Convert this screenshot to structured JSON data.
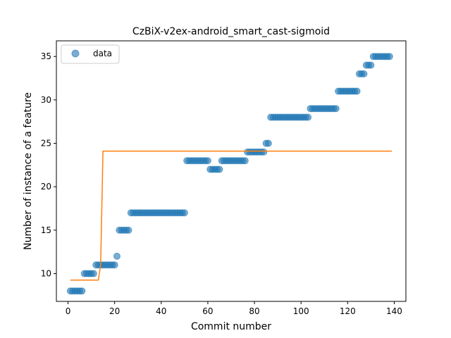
{
  "chart_data": {
    "type": "scatter",
    "title": "CzBiX-v2ex-android_smart_cast-sigmoid",
    "xlabel": "Commit number",
    "ylabel": "Number of instance of a feature",
    "xlim": [
      -5,
      145
    ],
    "ylim": [
      6.8,
      36.8
    ],
    "xticks": [
      0,
      20,
      40,
      60,
      80,
      100,
      120,
      140
    ],
    "yticks": [
      10,
      15,
      20,
      25,
      30,
      35
    ],
    "grid": false,
    "legend": {
      "placement": "top-left",
      "entries": [
        "data"
      ]
    },
    "colors": {
      "data": "#1f77b4",
      "fit": "#ff7f0e"
    },
    "series": [
      {
        "name": "data",
        "kind": "scatter",
        "x": [
          1,
          2,
          3,
          4,
          5,
          6,
          7,
          8,
          9,
          10,
          11,
          12,
          13,
          14,
          15,
          16,
          17,
          18,
          19,
          20,
          21,
          22,
          23,
          24,
          25,
          26,
          27,
          28,
          29,
          30,
          31,
          32,
          33,
          34,
          35,
          36,
          37,
          38,
          39,
          40,
          41,
          42,
          43,
          44,
          45,
          46,
          47,
          48,
          49,
          50,
          51,
          52,
          53,
          54,
          55,
          56,
          57,
          58,
          59,
          60,
          61,
          62,
          63,
          64,
          65,
          66,
          67,
          68,
          69,
          70,
          71,
          72,
          73,
          74,
          75,
          76,
          77,
          78,
          79,
          80,
          81,
          82,
          83,
          84,
          85,
          86,
          87,
          88,
          89,
          90,
          91,
          92,
          93,
          94,
          95,
          96,
          97,
          98,
          99,
          100,
          101,
          102,
          103,
          104,
          105,
          106,
          107,
          108,
          109,
          110,
          111,
          112,
          113,
          114,
          115,
          116,
          117,
          118,
          119,
          120,
          121,
          122,
          123,
          124,
          125,
          126,
          127,
          128,
          129,
          130,
          131,
          132,
          133,
          134,
          135,
          136,
          137,
          138
        ],
        "y": [
          8,
          8,
          8,
          8,
          8,
          8,
          10,
          10,
          10,
          10,
          10,
          11,
          11,
          11,
          11,
          11,
          11,
          11,
          11,
          11,
          12,
          15,
          15,
          15,
          15,
          15,
          17,
          17,
          17,
          17,
          17,
          17,
          17,
          17,
          17,
          17,
          17,
          17,
          17,
          17,
          17,
          17,
          17,
          17,
          17,
          17,
          17,
          17,
          17,
          17,
          23,
          23,
          23,
          23,
          23,
          23,
          23,
          23,
          23,
          23,
          22,
          22,
          22,
          22,
          22,
          23,
          23,
          23,
          23,
          23,
          23,
          23,
          23,
          23,
          23,
          23,
          24,
          24,
          24,
          24,
          24,
          24,
          24,
          24,
          25,
          25,
          28,
          28,
          28,
          28,
          28,
          28,
          28,
          28,
          28,
          28,
          28,
          28,
          28,
          28,
          28,
          28,
          28,
          29,
          29,
          29,
          29,
          29,
          29,
          29,
          29,
          29,
          29,
          29,
          29,
          31,
          31,
          31,
          31,
          31,
          31,
          31,
          31,
          31,
          33,
          33,
          33,
          34,
          34,
          34,
          35,
          35,
          35,
          35,
          35,
          35,
          35,
          35
        ]
      },
      {
        "name": "",
        "kind": "line",
        "x": [
          1,
          13,
          14,
          15,
          16,
          139
        ],
        "y": [
          9.25,
          9.25,
          11.0,
          24.1,
          24.1,
          24.1
        ]
      }
    ]
  }
}
